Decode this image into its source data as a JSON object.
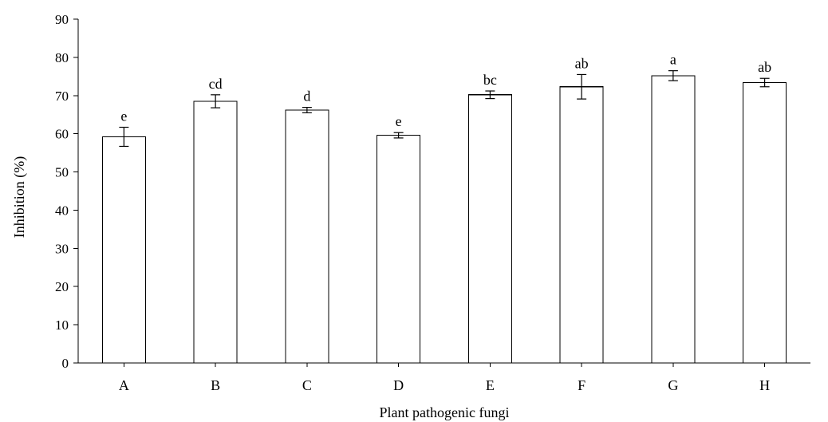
{
  "chart_data": {
    "type": "bar",
    "title": "",
    "xlabel": "Plant pathogenic fungi",
    "ylabel": "Inhibition (%)",
    "ylim": [
      0,
      90
    ],
    "yticks": [
      0,
      10,
      20,
      30,
      40,
      50,
      60,
      70,
      80,
      90
    ],
    "categories": [
      "A",
      "B",
      "C",
      "D",
      "E",
      "F",
      "G",
      "H"
    ],
    "values": [
      59.2,
      68.5,
      66.2,
      59.6,
      70.2,
      72.3,
      75.2,
      73.4
    ],
    "errors": [
      2.5,
      1.7,
      0.7,
      0.7,
      1.0,
      3.2,
      1.3,
      1.1
    ],
    "significance_labels": [
      "e",
      "cd",
      "d",
      "e",
      "bc",
      "ab",
      "a",
      "ab"
    ],
    "grid": false,
    "legend": "none",
    "colors": {
      "bar_fill": "#ffffff",
      "bar_stroke": "#000000"
    }
  }
}
